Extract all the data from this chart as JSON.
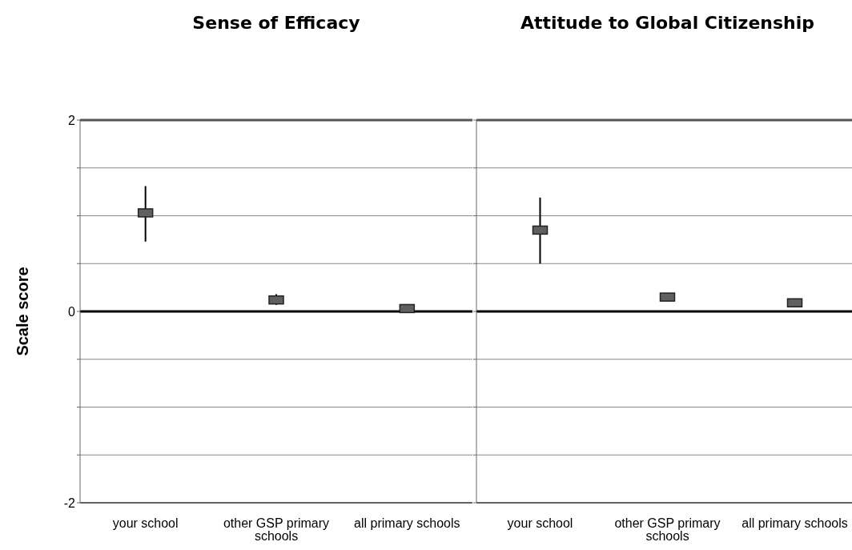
{
  "chart_data": [
    {
      "type": "scatter",
      "title": "Sense of Efficacy",
      "ylabel": "Scale score",
      "categories": [
        "your school",
        "other GSP primary schools",
        "all primary schools"
      ],
      "series": [
        {
          "color": "#606060",
          "values": [
            1.03,
            0.12,
            0.03
          ],
          "errors": [
            [
              0.73,
              1.31
            ],
            [
              0.07,
              0.18
            ],
            null
          ]
        }
      ],
      "ylim": [
        -2,
        2
      ],
      "yticks": [
        -2,
        {
          "value": -1.5,
          "label": null
        },
        {
          "value": -1,
          "label": null
        },
        {
          "value": -0.5,
          "label": null
        },
        0,
        {
          "value": 0.5,
          "label": null
        },
        {
          "value": 1,
          "label": null
        },
        {
          "value": 1.5,
          "label": null
        },
        2
      ],
      "grid": "y",
      "marker": "square",
      "ref_lines": [
        {
          "axis": "y",
          "value": 0,
          "color": "#000000"
        }
      ]
    },
    {
      "type": "scatter",
      "title": "Attitude to Global Citizenship",
      "categories": [
        "your school",
        "other GSP primary schools",
        "all primary schools"
      ],
      "series": [
        {
          "color": "#606060",
          "values": [
            0.85,
            0.15,
            0.09
          ],
          "errors": [
            [
              0.5,
              1.19
            ],
            [
              0.11,
              0.19
            ],
            null
          ]
        }
      ],
      "ylim": [
        -2,
        2
      ],
      "yticks": [
        -2,
        {
          "value": -1.5,
          "label": null
        },
        {
          "value": -1,
          "label": null
        },
        {
          "value": -0.5,
          "label": null
        },
        0,
        {
          "value": 0.5,
          "label": null
        },
        {
          "value": 1,
          "label": null
        },
        {
          "value": 1.5,
          "label": null
        },
        2
      ],
      "grid": "y",
      "marker": "square",
      "tick_labels": "x",
      "ref_lines": [
        {
          "axis": "y",
          "value": 0,
          "color": "#000000"
        }
      ]
    }
  ]
}
